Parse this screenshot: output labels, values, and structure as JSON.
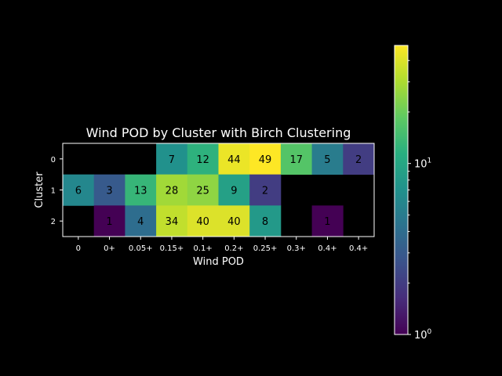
{
  "chart_data": {
    "type": "heatmap",
    "title": "Wind POD by Cluster with Birch Clustering",
    "xlabel": "Wind POD",
    "ylabel": "Cluster",
    "x_categories": [
      "0",
      "0+",
      "0.05+",
      "0.15+",
      "0.1+",
      "0.2+",
      "0.25+",
      "0.3+",
      "0.4+",
      "0.4+"
    ],
    "x_tick_labels": [
      "0",
      "0+",
      "0.05+",
      "0.15+",
      "0.1+",
      "0.2+",
      "0.25+",
      "0.3+",
      "0.4+",
      "0.4+"
    ],
    "x_tick_labels_rendered": "0 | 0+ | 0.05+ | 0.15+ | 0.1+ | 0.2+ | 0.25+ | 0.3+ | 0.4+ | 0.4+",
    "y_categories": [
      "0",
      "1",
      "2"
    ],
    "values": [
      [
        null,
        null,
        null,
        7,
        12,
        44,
        49,
        17,
        5,
        2
      ],
      [
        6,
        3,
        13,
        28,
        25,
        9,
        2,
        null,
        null,
        null
      ],
      [
        null,
        1,
        4,
        34,
        40,
        40,
        8,
        null,
        1,
        null
      ]
    ],
    "colorbar": {
      "scale": "log",
      "min": 1,
      "max": 49,
      "tick_labels": [
        "10^0",
        "10^1"
      ],
      "tick_values": [
        1,
        10
      ],
      "colormap": "viridis"
    },
    "missing_color": "#000000"
  },
  "colors": {
    "background": "#000000",
    "foreground": "#ffffff"
  }
}
